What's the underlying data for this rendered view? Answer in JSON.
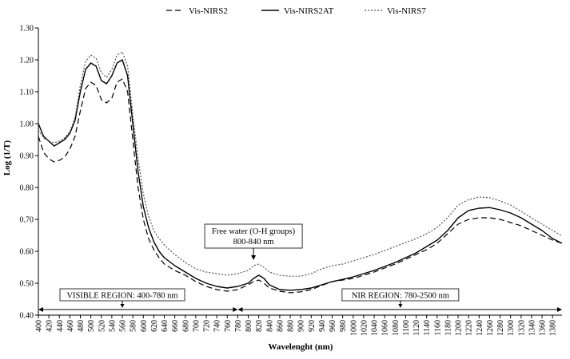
{
  "chart_data": {
    "type": "line",
    "xlabel": "Wavelenght (nm)",
    "ylabel": "Log (1/T)",
    "xlim": [
      400,
      1398
    ],
    "ylim": [
      0.4,
      1.3
    ],
    "y_ticks": [
      "0.40",
      "0.50",
      "0.60",
      "0.70",
      "0.80",
      "0.90",
      "1.00",
      "1.10",
      "1.20",
      "1.30"
    ],
    "x_ticks": [
      400,
      420,
      440,
      460,
      480,
      500,
      520,
      540,
      560,
      580,
      600,
      620,
      640,
      660,
      680,
      700,
      720,
      740,
      760,
      780,
      800,
      820,
      840,
      860,
      880,
      900,
      920,
      940,
      960,
      980,
      1000,
      1020,
      1040,
      1060,
      1080,
      1100,
      1120,
      1140,
      1160,
      1180,
      1200,
      1220,
      1240,
      1260,
      1280,
      1300,
      1320,
      1340,
      1360,
      1380
    ],
    "grid": false,
    "legend_position": "top-center",
    "series": [
      {
        "name": "Vis-NIRS2",
        "style": "dashed",
        "color": "#000000",
        "points": [
          [
            400,
            0.96
          ],
          [
            410,
            0.91
          ],
          [
            420,
            0.89
          ],
          [
            430,
            0.88
          ],
          [
            440,
            0.885
          ],
          [
            450,
            0.895
          ],
          [
            460,
            0.92
          ],
          [
            470,
            0.96
          ],
          [
            480,
            1.04
          ],
          [
            490,
            1.11
          ],
          [
            500,
            1.13
          ],
          [
            510,
            1.12
          ],
          [
            520,
            1.075
          ],
          [
            530,
            1.065
          ],
          [
            540,
            1.08
          ],
          [
            550,
            1.13
          ],
          [
            560,
            1.14
          ],
          [
            570,
            1.1
          ],
          [
            580,
            0.95
          ],
          [
            590,
            0.8
          ],
          [
            600,
            0.7
          ],
          [
            610,
            0.64
          ],
          [
            620,
            0.605
          ],
          [
            630,
            0.58
          ],
          [
            640,
            0.56
          ],
          [
            660,
            0.54
          ],
          [
            680,
            0.525
          ],
          [
            700,
            0.505
          ],
          [
            720,
            0.49
          ],
          [
            740,
            0.48
          ],
          [
            760,
            0.475
          ],
          [
            780,
            0.48
          ],
          [
            800,
            0.495
          ],
          [
            810,
            0.505
          ],
          [
            820,
            0.51
          ],
          [
            830,
            0.5
          ],
          [
            840,
            0.485
          ],
          [
            860,
            0.475
          ],
          [
            880,
            0.47
          ],
          [
            900,
            0.473
          ],
          [
            920,
            0.48
          ],
          [
            940,
            0.493
          ],
          [
            960,
            0.505
          ],
          [
            980,
            0.51
          ],
          [
            1000,
            0.515
          ],
          [
            1040,
            0.535
          ],
          [
            1080,
            0.56
          ],
          [
            1120,
            0.59
          ],
          [
            1140,
            0.605
          ],
          [
            1160,
            0.625
          ],
          [
            1180,
            0.655
          ],
          [
            1200,
            0.685
          ],
          [
            1220,
            0.7
          ],
          [
            1240,
            0.705
          ],
          [
            1260,
            0.705
          ],
          [
            1280,
            0.7
          ],
          [
            1300,
            0.69
          ],
          [
            1320,
            0.68
          ],
          [
            1340,
            0.665
          ],
          [
            1360,
            0.65
          ],
          [
            1380,
            0.635
          ],
          [
            1398,
            0.625
          ]
        ]
      },
      {
        "name": "Vis-NIRS2AT",
        "style": "solid",
        "color": "#000000",
        "points": [
          [
            400,
            1.0
          ],
          [
            410,
            0.96
          ],
          [
            420,
            0.945
          ],
          [
            430,
            0.93
          ],
          [
            440,
            0.94
          ],
          [
            450,
            0.95
          ],
          [
            460,
            0.97
          ],
          [
            470,
            1.01
          ],
          [
            480,
            1.1
          ],
          [
            490,
            1.17
          ],
          [
            500,
            1.19
          ],
          [
            510,
            1.18
          ],
          [
            520,
            1.135
          ],
          [
            530,
            1.125
          ],
          [
            540,
            1.15
          ],
          [
            550,
            1.19
          ],
          [
            560,
            1.2
          ],
          [
            570,
            1.15
          ],
          [
            580,
            1.0
          ],
          [
            590,
            0.85
          ],
          [
            600,
            0.74
          ],
          [
            610,
            0.675
          ],
          [
            620,
            0.63
          ],
          [
            630,
            0.6
          ],
          [
            640,
            0.58
          ],
          [
            660,
            0.555
          ],
          [
            680,
            0.535
          ],
          [
            700,
            0.515
          ],
          [
            720,
            0.5
          ],
          [
            740,
            0.49
          ],
          [
            760,
            0.485
          ],
          [
            780,
            0.49
          ],
          [
            800,
            0.5
          ],
          [
            810,
            0.515
          ],
          [
            820,
            0.525
          ],
          [
            830,
            0.515
          ],
          [
            840,
            0.495
          ],
          [
            860,
            0.48
          ],
          [
            880,
            0.478
          ],
          [
            900,
            0.48
          ],
          [
            920,
            0.485
          ],
          [
            940,
            0.495
          ],
          [
            960,
            0.505
          ],
          [
            980,
            0.512
          ],
          [
            1000,
            0.52
          ],
          [
            1040,
            0.54
          ],
          [
            1080,
            0.565
          ],
          [
            1120,
            0.595
          ],
          [
            1140,
            0.615
          ],
          [
            1160,
            0.635
          ],
          [
            1180,
            0.665
          ],
          [
            1200,
            0.705
          ],
          [
            1220,
            0.728
          ],
          [
            1240,
            0.735
          ],
          [
            1260,
            0.737
          ],
          [
            1280,
            0.73
          ],
          [
            1300,
            0.72
          ],
          [
            1320,
            0.705
          ],
          [
            1340,
            0.685
          ],
          [
            1360,
            0.665
          ],
          [
            1380,
            0.64
          ],
          [
            1398,
            0.625
          ]
        ]
      },
      {
        "name": "Vis-NIRS7",
        "style": "dotted",
        "color": "#555555",
        "points": [
          [
            400,
            0.98
          ],
          [
            410,
            0.955
          ],
          [
            420,
            0.945
          ],
          [
            430,
            0.94
          ],
          [
            440,
            0.945
          ],
          [
            450,
            0.955
          ],
          [
            460,
            0.975
          ],
          [
            470,
            1.02
          ],
          [
            480,
            1.12
          ],
          [
            490,
            1.195
          ],
          [
            500,
            1.215
          ],
          [
            510,
            1.205
          ],
          [
            520,
            1.16
          ],
          [
            530,
            1.145
          ],
          [
            540,
            1.17
          ],
          [
            550,
            1.215
          ],
          [
            560,
            1.225
          ],
          [
            570,
            1.18
          ],
          [
            580,
            1.03
          ],
          [
            590,
            0.89
          ],
          [
            600,
            0.78
          ],
          [
            610,
            0.71
          ],
          [
            620,
            0.665
          ],
          [
            630,
            0.64
          ],
          [
            640,
            0.62
          ],
          [
            660,
            0.59
          ],
          [
            680,
            0.565
          ],
          [
            700,
            0.545
          ],
          [
            720,
            0.535
          ],
          [
            740,
            0.53
          ],
          [
            760,
            0.525
          ],
          [
            780,
            0.53
          ],
          [
            800,
            0.54
          ],
          [
            810,
            0.555
          ],
          [
            820,
            0.56
          ],
          [
            830,
            0.55
          ],
          [
            840,
            0.535
          ],
          [
            860,
            0.525
          ],
          [
            880,
            0.522
          ],
          [
            900,
            0.522
          ],
          [
            920,
            0.53
          ],
          [
            940,
            0.545
          ],
          [
            960,
            0.555
          ],
          [
            980,
            0.56
          ],
          [
            1000,
            0.57
          ],
          [
            1040,
            0.59
          ],
          [
            1080,
            0.615
          ],
          [
            1120,
            0.64
          ],
          [
            1140,
            0.655
          ],
          [
            1160,
            0.675
          ],
          [
            1180,
            0.705
          ],
          [
            1200,
            0.745
          ],
          [
            1220,
            0.762
          ],
          [
            1240,
            0.77
          ],
          [
            1260,
            0.768
          ],
          [
            1280,
            0.758
          ],
          [
            1300,
            0.745
          ],
          [
            1320,
            0.725
          ],
          [
            1340,
            0.705
          ],
          [
            1360,
            0.685
          ],
          [
            1380,
            0.665
          ],
          [
            1398,
            0.648
          ]
        ]
      }
    ],
    "annotations": {
      "free_water": {
        "line1": "Free water (O-H groups)",
        "line2": "800-840 nm",
        "x": 810
      },
      "visible_region": {
        "label": "VISIBLE REGION: 400-780 nm",
        "start": 400,
        "end": 780,
        "marker_x": 560
      },
      "nir_region": {
        "label": "NIR REGION: 780-2500 nm",
        "start": 780,
        "end": 1398,
        "marker_x": 1090
      }
    }
  }
}
